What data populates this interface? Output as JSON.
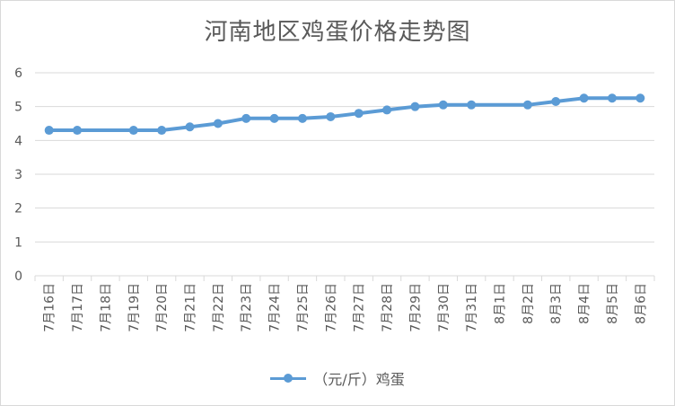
{
  "chart_data": {
    "type": "line",
    "title": "河南地区鸡蛋价格走势图",
    "xlabel": "",
    "ylabel": "",
    "ylim": [
      0,
      6
    ],
    "yticks": [
      "0",
      "1",
      "2",
      "3",
      "4",
      "5",
      "6"
    ],
    "grid": true,
    "legend_position": "bottom",
    "categories": [
      "7月16日",
      "7月17日",
      "7月18日",
      "7月19日",
      "7月20日",
      "7月21日",
      "7月22日",
      "7月23日",
      "7月24日",
      "7月25日",
      "7月26日",
      "7月27日",
      "7月28日",
      "7月29日",
      "7月30日",
      "7月31日",
      "8月1日",
      "8月2日",
      "8月3日",
      "8月4日",
      "8月5日",
      "8月6日"
    ],
    "series": [
      {
        "name": "（元/斤）鸡蛋",
        "color": "#5b9bd5",
        "values": [
          4.3,
          4.3,
          null,
          4.3,
          4.3,
          4.4,
          4.5,
          4.65,
          4.65,
          4.65,
          4.7,
          4.8,
          4.9,
          5.0,
          5.05,
          5.05,
          null,
          5.05,
          5.15,
          5.25,
          5.25,
          5.25
        ]
      }
    ]
  }
}
